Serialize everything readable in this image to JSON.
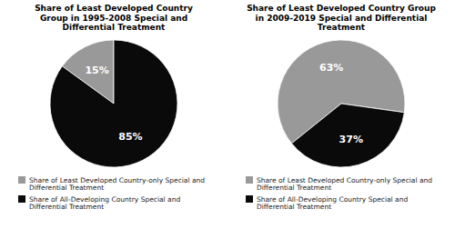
{
  "chart_data": [
    {
      "type": "pie",
      "title": "Share of Least Developed Country\nGroup in 1995-2008 Special and\nDifferential Treatment",
      "categories": [
        "Share of Least Developed Country-only Special and\nDifferential Treatment",
        "Share of All-Developing Country Special and\nDifferential Treatment"
      ],
      "values": [
        15,
        85
      ],
      "value_labels": [
        "15%",
        "85%"
      ],
      "colors": [
        "#999999",
        "#0a0a0a"
      ],
      "data_labels": true,
      "legend": "bottom"
    },
    {
      "type": "pie",
      "title": "Share of Least Developed Country Group\nin 2009-2019 Special and Differential\nTreatment",
      "categories": [
        "Share of Least Developed Country-only Special and\nDifferential Treatment",
        "Share of All-Developing Country Special and\nDifferential Treatment"
      ],
      "values": [
        63,
        37
      ],
      "value_labels": [
        "63%",
        "37%"
      ],
      "colors": [
        "#999999",
        "#0a0a0a"
      ],
      "data_labels": true,
      "legend": "bottom"
    }
  ]
}
